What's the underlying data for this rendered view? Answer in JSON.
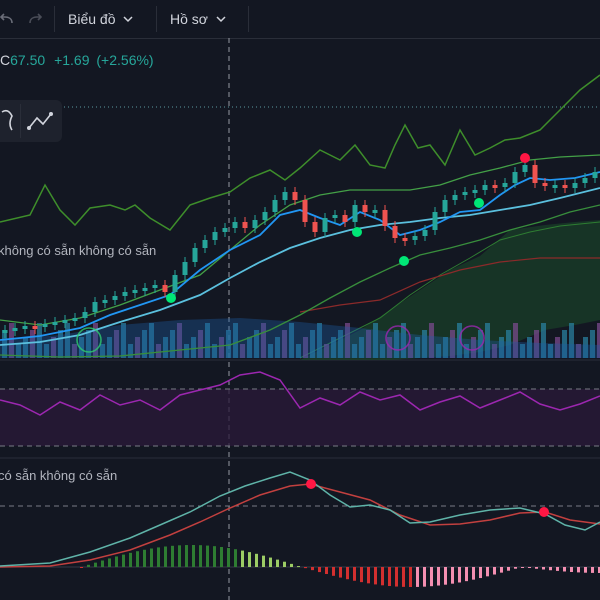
{
  "toolbar": {
    "chart_menu_label": "Biểu đồ",
    "profile_menu_label": "Hồ sơ",
    "undo_icon": "undo-icon",
    "redo_icon": "redo-icon",
    "chevron_icon": "chevron-down-icon"
  },
  "quote": {
    "symbol_fragment": "C",
    "price": "67.50",
    "change": "+1.69",
    "change_pct": "(+2.56%)",
    "up_color": "#26a69a"
  },
  "drawing_tools": {
    "tool1_icon": "brush-icon",
    "tool2_icon": "trend-line-icon"
  },
  "indicators": {
    "main_pane_legend": "không có sẵn  không có sẵn",
    "macd_pane_legend": "có sẵn  không có sẵn"
  },
  "colors": {
    "background": "#131722",
    "candle_up": "#26a69a",
    "candle_down": "#ef5350",
    "ma_fast": "#2196f3",
    "ma_slow": "#5bc0de",
    "band": "#4caf50",
    "rsi": "#9c27b0",
    "macd_line": "#5fb3a8",
    "signal_line": "#c2403f"
  }
}
